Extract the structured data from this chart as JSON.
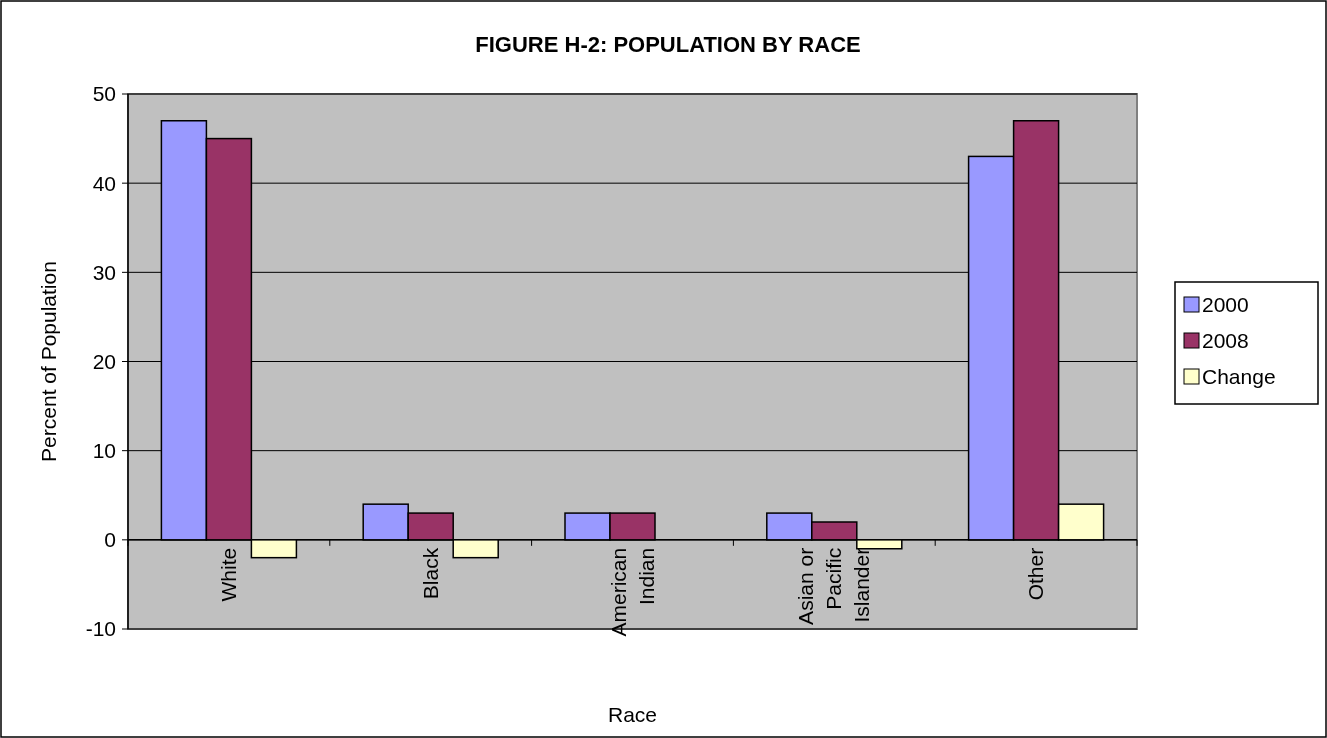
{
  "chart_data": {
    "type": "bar",
    "title": "FIGURE H-2: POPULATION BY RACE",
    "xlabel": "Race",
    "ylabel": "Percent of Population",
    "categories": [
      "White",
      "Black",
      "American Indian",
      "Asian or Pacific Islander",
      "Other"
    ],
    "series": [
      {
        "name": "2000",
        "color": "#9999ff",
        "values": [
          47,
          4,
          3,
          3,
          43
        ]
      },
      {
        "name": "2008",
        "color": "#993366",
        "values": [
          45,
          3,
          3,
          2,
          47
        ]
      },
      {
        "name": "Change",
        "color": "#ffffcc",
        "values": [
          -2,
          -2,
          0,
          -1,
          4
        ]
      }
    ],
    "ylim": [
      -10,
      50
    ],
    "yticks": [
      -10,
      0,
      10,
      20,
      30,
      40,
      50
    ],
    "grid": "y",
    "legend": "right"
  }
}
